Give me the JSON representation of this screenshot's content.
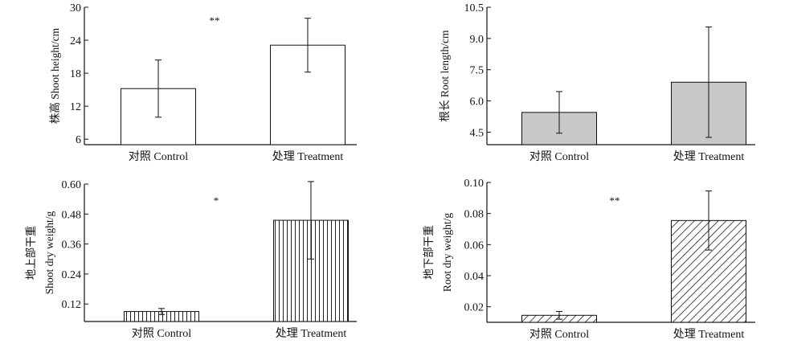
{
  "figure": {
    "panels": [
      {
        "type": "bar",
        "title": "",
        "ylabel_lines": [
          "株高 Shoot height/cm"
        ],
        "categories": [
          "对照 Control",
          "处理 Treatment"
        ],
        "values": [
          15.2,
          23.1
        ],
        "errors": [
          5.2,
          4.9
        ],
        "ylim": [
          5,
          30
        ],
        "yticks": [
          6,
          12,
          18,
          24,
          30
        ],
        "ytick_labels": [
          "6",
          "12",
          "18",
          "24",
          "30"
        ],
        "significance": "**",
        "fill": "none",
        "fill_color": "#ffffff"
      },
      {
        "type": "bar",
        "title": "",
        "ylabel_lines": [
          "根长 Root length/cm"
        ],
        "categories": [
          "对照 Control",
          "处理 Treatment"
        ],
        "values": [
          5.45,
          6.9
        ],
        "errors": [
          1.0,
          2.65
        ],
        "ylim": [
          3.9,
          10.5
        ],
        "yticks": [
          4.5,
          6.0,
          7.5,
          9.0,
          10.5
        ],
        "ytick_labels": [
          "4.5",
          "6.0",
          "7.5",
          "9.0",
          "10.5"
        ],
        "significance": "",
        "fill": "solid",
        "fill_color": "#c8c8c8"
      },
      {
        "type": "bar",
        "title": "",
        "ylabel_lines": [
          "地上部干重",
          "Shoot dry weight/g"
        ],
        "categories": [
          "对照 Control",
          "处理 Treatment"
        ],
        "values": [
          0.09,
          0.455
        ],
        "errors": [
          0.012,
          0.155
        ],
        "ylim": [
          0.05,
          0.6
        ],
        "yticks": [
          0.12,
          0.24,
          0.36,
          0.48,
          0.6
        ],
        "ytick_labels": [
          "0.12",
          "0.24",
          "0.36",
          "0.48",
          "0.60"
        ],
        "significance": "*",
        "fill": "vertical-lines",
        "fill_color": "#ffffff"
      },
      {
        "type": "bar",
        "title": "",
        "ylabel_lines": [
          "地下部干重",
          "Root dry weight/g"
        ],
        "categories": [
          "对照 Control",
          "处理 Treatment"
        ],
        "values": [
          0.0145,
          0.0755
        ],
        "errors": [
          0.0025,
          0.019
        ],
        "ylim": [
          0.01,
          0.1
        ],
        "yticks": [
          0.02,
          0.04,
          0.06,
          0.08,
          0.1
        ],
        "ytick_labels": [
          "0.02",
          "0.04",
          "0.06",
          "0.08",
          "0.10"
        ],
        "significance": "**",
        "fill": "diagonal-lines",
        "fill_color": "#ffffff"
      }
    ]
  },
  "chart_data": [
    {
      "type": "bar",
      "categories": [
        "对照 Control",
        "处理 Treatment"
      ],
      "series": [
        {
          "values": [
            15.2,
            23.1
          ],
          "errors": [
            5.2,
            4.9
          ]
        }
      ],
      "title": "",
      "xlabel": "",
      "ylabel": "株高 Shoot height/cm",
      "ylim": [
        5,
        30
      ],
      "grid": false,
      "annotations": [
        "**"
      ]
    },
    {
      "type": "bar",
      "categories": [
        "对照 Control",
        "处理 Treatment"
      ],
      "series": [
        {
          "values": [
            5.45,
            6.9
          ],
          "errors": [
            1.0,
            2.65
          ]
        }
      ],
      "title": "",
      "xlabel": "",
      "ylabel": "根长 Root length/cm",
      "ylim": [
        3.9,
        10.5
      ],
      "grid": false,
      "annotations": []
    },
    {
      "type": "bar",
      "categories": [
        "对照 Control",
        "处理 Treatment"
      ],
      "series": [
        {
          "values": [
            0.09,
            0.455
          ],
          "errors": [
            0.012,
            0.155
          ]
        }
      ],
      "title": "",
      "xlabel": "",
      "ylabel": "地上部干重 Shoot dry weight/g",
      "ylim": [
        0.05,
        0.6
      ],
      "grid": false,
      "annotations": [
        "*"
      ]
    },
    {
      "type": "bar",
      "categories": [
        "对照 Control",
        "处理 Treatment"
      ],
      "series": [
        {
          "values": [
            0.0145,
            0.0755
          ],
          "errors": [
            0.0025,
            0.019
          ]
        }
      ],
      "title": "",
      "xlabel": "",
      "ylabel": "地下部干重 Root dry weight/g",
      "ylim": [
        0.01,
        0.1
      ],
      "grid": false,
      "annotations": [
        "**"
      ]
    }
  ]
}
